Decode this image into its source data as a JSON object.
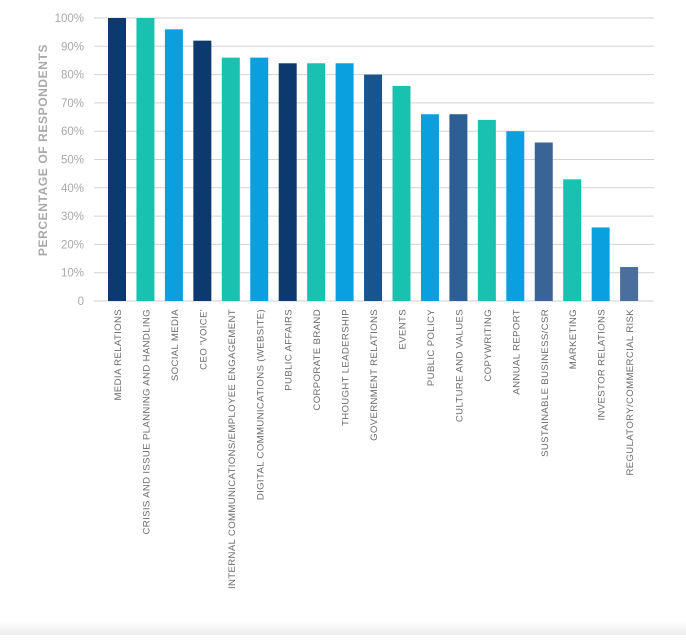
{
  "chart_data": {
    "type": "bar",
    "ylabel": "PERCENTAGE OF RESPONDENTS",
    "ylim": [
      0,
      100
    ],
    "yticks": [
      0,
      10,
      20,
      30,
      40,
      50,
      60,
      70,
      80,
      90,
      100
    ],
    "ytick_labels": [
      "0",
      "10%",
      "20%",
      "30%",
      "40%",
      "50%",
      "60%",
      "70%",
      "80%",
      "90%",
      "100%"
    ],
    "grid": true,
    "categories": [
      "MEDIA RELATIONS",
      "CRISIS AND ISSUE PLANNING AND HANDLING",
      "SOCIAL MEDIA",
      "CEO 'VOICE'",
      "INTERNAL COMMUNICATIONS/EMPLOYEE ENGAGEMENT",
      "DIGITAL COMMUNICATIONS (WEBSITE)",
      "PUBLIC AFFAIRS",
      "CORPORATE BRAND",
      "THOUGHT LEADERSHIP",
      "GOVERNMENT RELATIONS",
      "EVENTS",
      "PUBLIC POLICY",
      "CULTURE AND VALUES",
      "COPYWRITING",
      "ANNUAL REPORT",
      "SUSTAINABLE BUSINESS/CSR",
      "MARKETING",
      "INVESTOR RELATIONS",
      "REGULATORY/COMMERCIAL RISK"
    ],
    "values": [
      100,
      100,
      96,
      92,
      86,
      86,
      84,
      84,
      84,
      80,
      76,
      66,
      66,
      64,
      60,
      56,
      43,
      26,
      12
    ],
    "bar_colors": [
      "#0d3a6e",
      "#18c1b0",
      "#0aa0df",
      "#0d3a6e",
      "#18c1b0",
      "#0aa0df",
      "#0d3a6e",
      "#18c1b0",
      "#0aa0df",
      "#1a548c",
      "#18c1b0",
      "#0aa0df",
      "#2d5f94",
      "#18c1b0",
      "#0aa0df",
      "#3b6496",
      "#18c1b0",
      "#0aa0df",
      "#4a6f9e"
    ],
    "colors": {
      "grid": "#d2d2d2",
      "axis_text": "#a9a9a9",
      "category_text": "#6b6b6b"
    }
  }
}
